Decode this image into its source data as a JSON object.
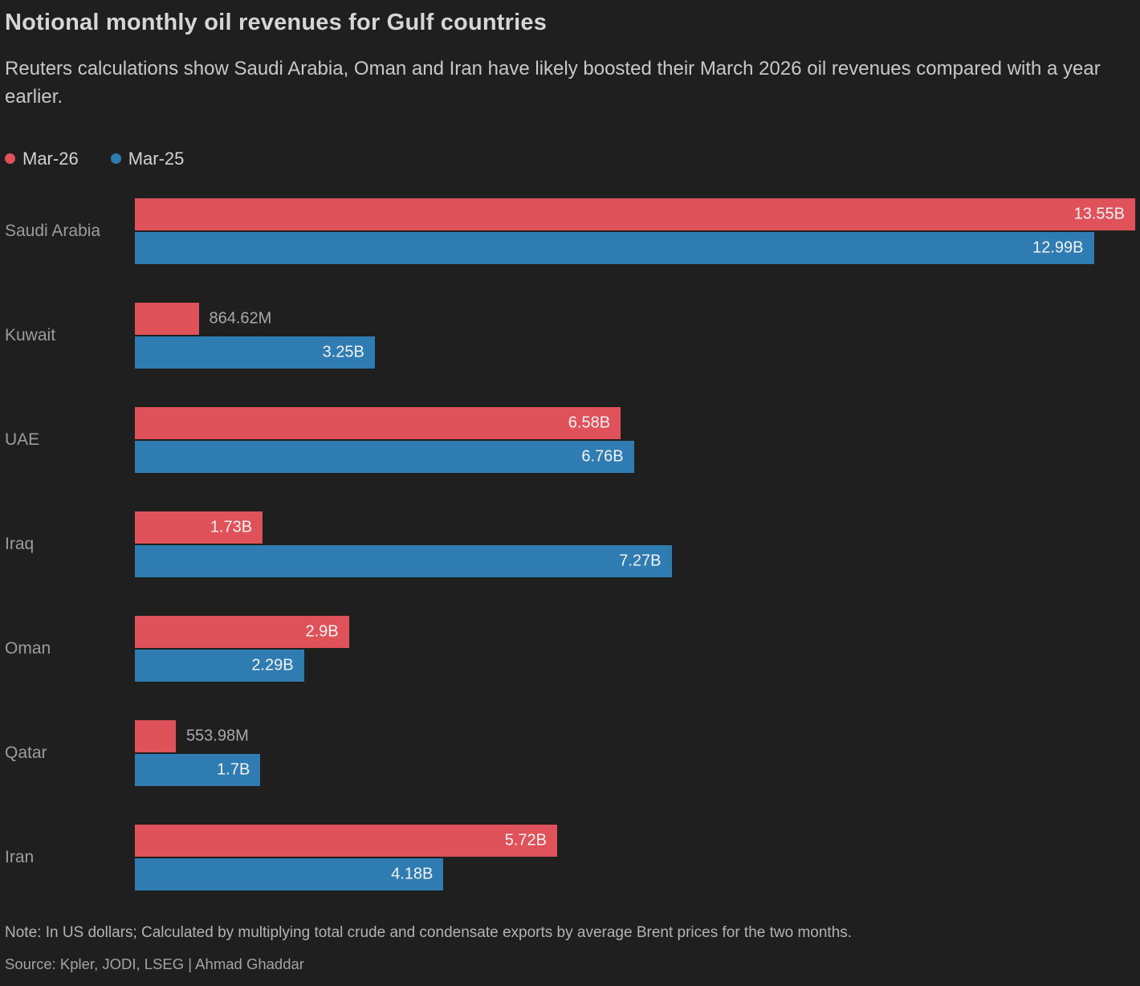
{
  "header": {
    "title": "Notional monthly oil revenues for Gulf countries",
    "subtitle": "Reuters calculations show Saudi Arabia, Oman and Iran have likely boosted their March 2026 oil revenues compared with a year earlier."
  },
  "legend": [
    {
      "label": "Mar-26",
      "color": "#e0525a"
    },
    {
      "label": "Mar-25",
      "color": "#2f7cb3"
    }
  ],
  "footer": {
    "note": "Note: In US dollars; Calculated by multiplying total crude and condensate exports by average Brent prices for the two months.",
    "source": "Source: Kpler, JODI, LSEG | Ahmad Ghaddar"
  },
  "chart_data": {
    "type": "bar",
    "orientation": "horizontal",
    "title": "Notional monthly oil revenues for Gulf countries",
    "subtitle": "Reuters calculations show Saudi Arabia, Oman and Iran have likely boosted their March 2026 oil revenues compared with a year earlier.",
    "unit": "US dollars",
    "xlabel": "",
    "ylabel": "",
    "xmax": 13.55,
    "grid": false,
    "legend_position": "top",
    "categories": [
      "Saudi Arabia",
      "Kuwait",
      "UAE",
      "Iraq",
      "Oman",
      "Qatar",
      "Iran"
    ],
    "series": [
      {
        "name": "Mar-26",
        "color": "#e0525a",
        "values_billions": [
          13.55,
          0.86462,
          6.58,
          1.73,
          2.9,
          0.55398,
          5.72
        ],
        "labels": [
          "13.55B",
          "864.62M",
          "6.58B",
          "1.73B",
          "2.9B",
          "553.98M",
          "5.72B"
        ]
      },
      {
        "name": "Mar-25",
        "color": "#2f7cb3",
        "values_billions": [
          12.99,
          3.25,
          6.76,
          7.27,
          2.29,
          1.7,
          4.18
        ],
        "labels": [
          "12.99B",
          "3.25B",
          "6.76B",
          "7.27B",
          "2.29B",
          "1.7B",
          "4.18B"
        ]
      }
    ]
  }
}
